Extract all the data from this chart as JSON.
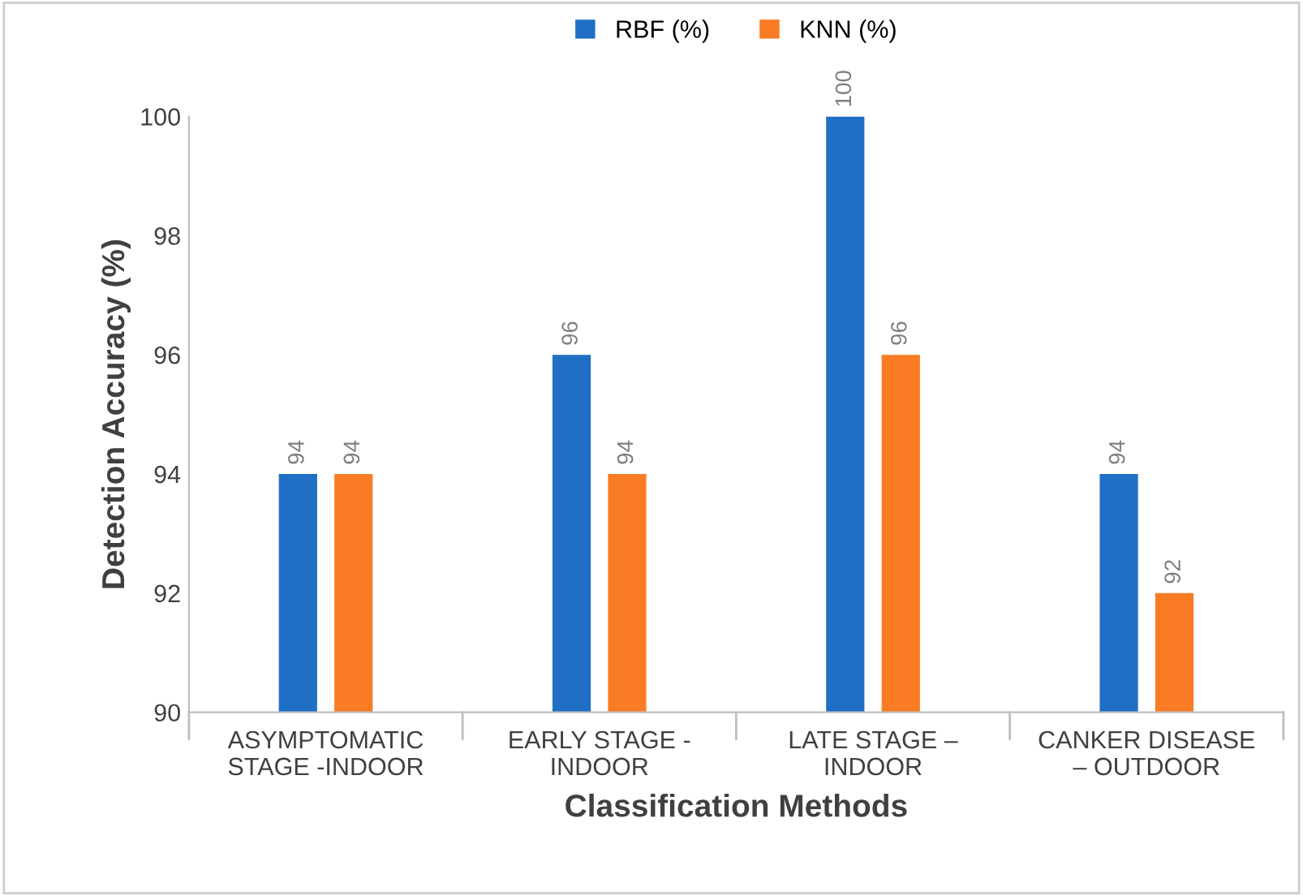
{
  "chart_data": {
    "type": "bar",
    "xlabel": "Classification Methods",
    "ylabel": "Detection Accuracy (%)",
    "categories": [
      "ASYMPTOMATIC\nSTAGE -INDOOR",
      "EARLY STAGE -\nINDOOR",
      "LATE STAGE –\nINDOOR",
      "CANKER DISEASE\n– OUTDOOR"
    ],
    "series": [
      {
        "name": "RBF (%)",
        "color": "#1f6fc5",
        "values": [
          94,
          96,
          100,
          94
        ]
      },
      {
        "name": "KNN (%)",
        "color": "#f97c24",
        "values": [
          94,
          94,
          96,
          92
        ]
      }
    ],
    "ylim": [
      90,
      100
    ],
    "yticks": [
      90,
      92,
      94,
      96,
      98,
      100
    ],
    "grid": false,
    "legend": "top",
    "data_labels": true
  }
}
